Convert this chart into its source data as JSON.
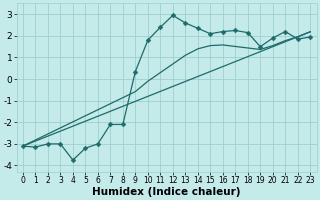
{
  "title": "",
  "xlabel": "Humidex (Indice chaleur)",
  "ylabel": "",
  "bg_color": "#c5eaea",
  "grid_color": "#9dcfcf",
  "line_color": "#1e6b6b",
  "x_data": [
    0,
    1,
    2,
    3,
    4,
    5,
    6,
    7,
    8,
    9,
    10,
    11,
    12,
    13,
    14,
    15,
    16,
    17,
    18,
    19,
    20,
    21,
    22,
    23
  ],
  "y_curve": [
    -3.1,
    -3.15,
    -3.0,
    -3.0,
    -3.75,
    -3.2,
    -3.0,
    -2.1,
    -2.1,
    0.35,
    1.8,
    2.4,
    2.95,
    2.6,
    2.35,
    2.1,
    2.2,
    2.25,
    2.15,
    1.5,
    1.9,
    2.2,
    1.85,
    1.95
  ],
  "y_line1": [
    -3.1,
    -2.87,
    -2.64,
    -2.41,
    -2.18,
    -1.95,
    -1.72,
    -1.49,
    -1.26,
    -1.03,
    -0.8,
    -0.57,
    -0.34,
    -0.11,
    0.12,
    0.35,
    0.58,
    0.81,
    1.04,
    1.27,
    1.5,
    1.73,
    1.96,
    2.19
  ],
  "y_line2": [
    -3.1,
    -2.82,
    -2.54,
    -2.26,
    -1.98,
    -1.7,
    -1.42,
    -1.14,
    -0.86,
    -0.58,
    -0.1,
    0.3,
    0.7,
    1.1,
    1.4,
    1.55,
    1.58,
    1.51,
    1.44,
    1.37,
    1.55,
    1.78,
    1.96,
    2.19
  ],
  "xlim": [
    -0.5,
    23.5
  ],
  "ylim": [
    -4.3,
    3.5
  ],
  "yticks": [
    -4,
    -3,
    -2,
    -1,
    0,
    1,
    2,
    3
  ],
  "xticks": [
    0,
    1,
    2,
    3,
    4,
    5,
    6,
    7,
    8,
    9,
    10,
    11,
    12,
    13,
    14,
    15,
    16,
    17,
    18,
    19,
    20,
    21,
    22,
    23
  ],
  "ytick_fontsize": 6.5,
  "xtick_fontsize": 5.5,
  "xlabel_fontsize": 7.5,
  "lw": 0.9,
  "marker_size": 2.5
}
